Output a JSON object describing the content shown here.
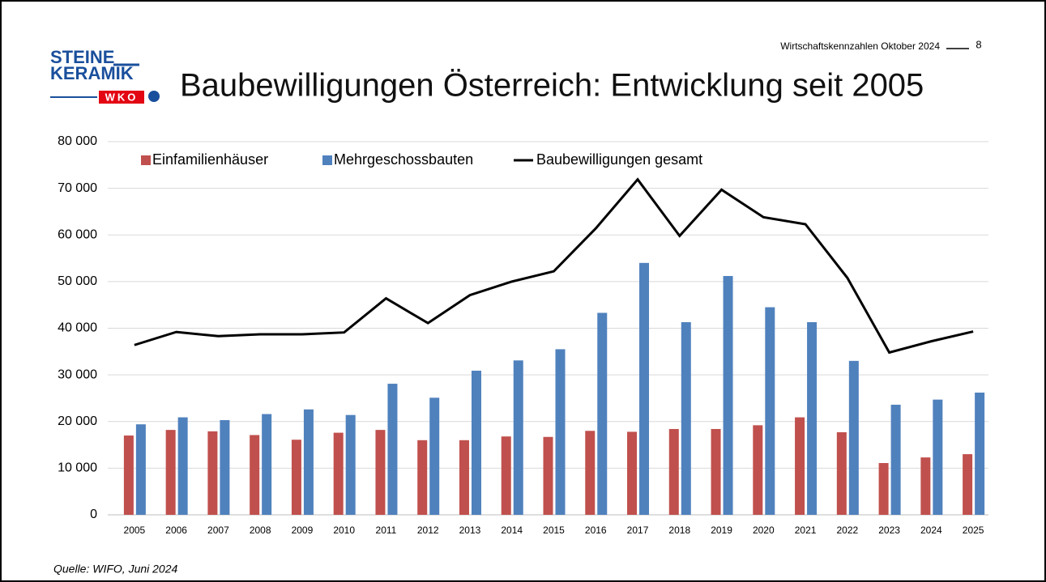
{
  "header": {
    "logo_line1": "STEINE",
    "logo_line2": "KERAMIK",
    "logo_line3": "WKO",
    "caption": "Wirtschaftskennzahlen Oktober 2024",
    "page": "8"
  },
  "chart_data": {
    "type": "bar",
    "title": "Baubewilligungen Österreich: Entwicklung seit 2005",
    "source": "Quelle: WIFO, Juni 2024",
    "categories": [
      "2005",
      "2006",
      "2007",
      "2008",
      "2009",
      "2010",
      "2011",
      "2012",
      "2013",
      "2014",
      "2015",
      "2016",
      "2017",
      "2018",
      "2019",
      "2020",
      "2021",
      "2022",
      "2023",
      "2024",
      "2025"
    ],
    "series": [
      {
        "name": "Einfamilienhäuser",
        "type": "bar",
        "color": "#c0504d",
        "values": [
          17000,
          18200,
          17900,
          17100,
          16100,
          17600,
          18200,
          16000,
          16000,
          16800,
          16700,
          18000,
          17800,
          18400,
          18400,
          19200,
          20900,
          17700,
          11100,
          12300,
          13000
        ]
      },
      {
        "name": "Mehrgeschossbauten",
        "type": "bar",
        "color": "#4f81bd",
        "values": [
          19400,
          20900,
          20300,
          21600,
          22600,
          21400,
          28100,
          25100,
          30900,
          33100,
          35500,
          43300,
          54000,
          41300,
          51200,
          44500,
          41300,
          33000,
          23600,
          24700,
          26200
        ]
      },
      {
        "name": "Baubewilligungen gesamt",
        "type": "line",
        "color": "#000000",
        "values": [
          36400,
          39200,
          38300,
          38700,
          38700,
          39100,
          46400,
          41100,
          47100,
          50000,
          52200,
          61400,
          71900,
          59800,
          69700,
          63800,
          62300,
          50800,
          34800,
          37200,
          39300
        ]
      }
    ],
    "ylim": [
      0,
      80000
    ],
    "yticks": [
      0,
      {
        "value": 10000,
        "label": "10 000"
      },
      {
        "value": 20000,
        "label": "20 000"
      },
      {
        "value": 30000,
        "label": "30 000"
      },
      {
        "value": 40000,
        "label": "40 000"
      },
      {
        "value": 50000,
        "label": "50 000"
      },
      {
        "value": 60000,
        "label": "60 000"
      },
      {
        "value": 70000,
        "label": "70 000"
      },
      {
        "value": 80000,
        "label": "80 000"
      }
    ],
    "grid": true,
    "legend": "top"
  }
}
